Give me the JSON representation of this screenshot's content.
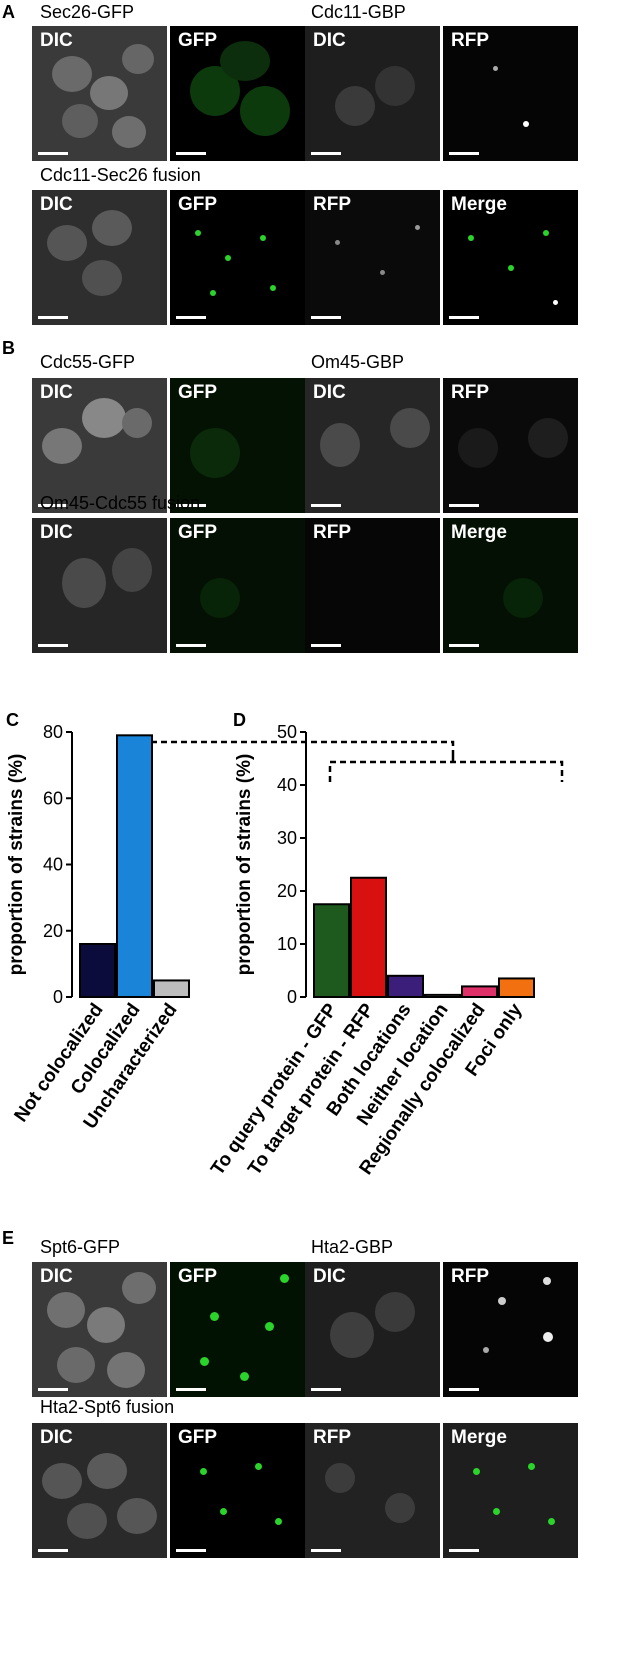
{
  "panels": {
    "A": {
      "letter": "A",
      "row1": {
        "strain_left": "Sec26-GFP",
        "strain_right": "Cdc11-GBP",
        "labels": [
          "DIC",
          "GFP",
          "DIC",
          "RFP"
        ]
      },
      "row2": {
        "strain": "Cdc11-Sec26 fusion",
        "labels": [
          "DIC",
          "GFP",
          "RFP",
          "Merge"
        ]
      }
    },
    "B": {
      "letter": "B",
      "row1": {
        "strain_left": "Cdc55-GFP",
        "strain_right": "Om45-GBP",
        "labels": [
          "DIC",
          "GFP",
          "DIC",
          "RFP"
        ]
      },
      "row2": {
        "strain": "Om45-Cdc55 fusion",
        "labels": [
          "DIC",
          "GFP",
          "RFP",
          "Merge"
        ]
      }
    },
    "C": {
      "letter": "C"
    },
    "D": {
      "letter": "D"
    },
    "E": {
      "letter": "E",
      "row1": {
        "strain_left": "Spt6-GFP",
        "strain_right": "Hta2-GBP",
        "labels": [
          "DIC",
          "GFP",
          "DIC",
          "RFP"
        ]
      },
      "row2": {
        "strain": "Hta2-Spt6 fusion",
        "labels": [
          "DIC",
          "GFP",
          "RFP",
          "Merge"
        ]
      }
    }
  },
  "colors": {
    "navy": "#0c0c3c",
    "blue": "#1a84d8",
    "grey": "#bdbdbd",
    "dkgreen": "#1e5a1e",
    "red": "#d81010",
    "purple": "#3a1e7a",
    "pink": "#e0306a",
    "orange": "#f27010",
    "gfp": "#2bd42b"
  },
  "chart_data": [
    {
      "type": "bar",
      "panel": "C",
      "categories": [
        "Not colocalized",
        "Colocalized",
        "Uncharacterized"
      ],
      "values": [
        16,
        79,
        5
      ],
      "colors": [
        "#0c0c3c",
        "#1a84d8",
        "#bdbdbd"
      ],
      "ylabel": "proportion of strains (%)",
      "ylim": [
        0,
        80
      ],
      "yticks": [
        0,
        20,
        40,
        60,
        80
      ],
      "grid": false
    },
    {
      "type": "bar",
      "panel": "D",
      "categories": [
        "To query protein - GFP",
        "To target protein - RFP",
        "Both locations",
        "Neither location",
        "Regionally colocalized",
        "Foci only"
      ],
      "values": [
        17.5,
        22.5,
        4,
        0.4,
        2,
        3.5
      ],
      "colors": [
        "#1e5a1e",
        "#d81010",
        "#3a1e7a",
        "#bdbdbd",
        "#e0306a",
        "#f27010"
      ],
      "ylabel": "proportion of strains (%)",
      "ylim": [
        0,
        50
      ],
      "yticks": [
        0,
        10,
        20,
        30,
        40,
        50
      ],
      "grid": false
    }
  ]
}
